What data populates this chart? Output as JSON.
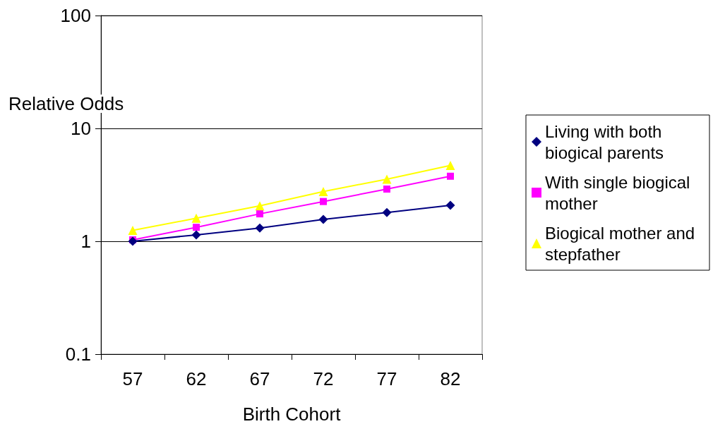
{
  "chart_data": {
    "type": "line",
    "xlabel": "Birth Cohort",
    "ylabel": "Relative Odds",
    "categories": [
      "57",
      "62",
      "67",
      "72",
      "77",
      "82"
    ],
    "log": "y",
    "ylim": [
      0.1,
      100
    ],
    "yticks": [
      0.1,
      1,
      10,
      100
    ],
    "grid": "y",
    "legend": "right",
    "series": [
      {
        "name": "Living with both biogical parents",
        "color": "#000080",
        "marker": "diamond",
        "values": [
          1.0,
          1.14,
          1.31,
          1.56,
          1.8,
          2.08
        ]
      },
      {
        "name": "With single biogical mother",
        "color": "#ff00ff",
        "marker": "square",
        "values": [
          1.03,
          1.33,
          1.75,
          2.25,
          2.9,
          3.77
        ]
      },
      {
        "name": "Biogical mother and stepfather",
        "color": "#ffff00",
        "marker": "triangle",
        "values": [
          1.25,
          1.6,
          2.06,
          2.76,
          3.55,
          4.7
        ]
      }
    ]
  }
}
